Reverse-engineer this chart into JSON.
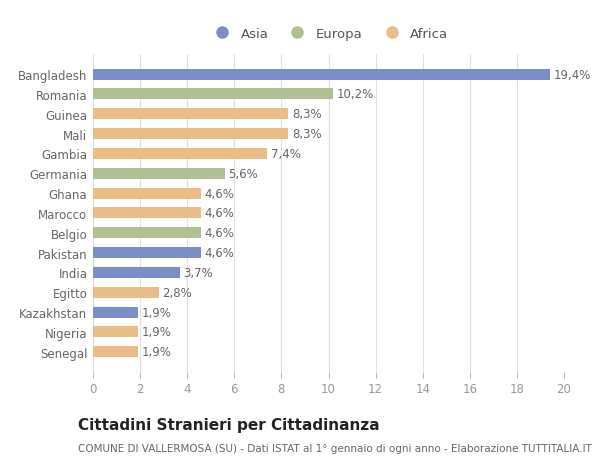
{
  "categories": [
    "Bangladesh",
    "Romania",
    "Guinea",
    "Mali",
    "Gambia",
    "Germania",
    "Ghana",
    "Marocco",
    "Belgio",
    "Pakistan",
    "India",
    "Egitto",
    "Kazakhstan",
    "Nigeria",
    "Senegal"
  ],
  "values": [
    19.4,
    10.2,
    8.3,
    8.3,
    7.4,
    5.6,
    4.6,
    4.6,
    4.6,
    4.6,
    3.7,
    2.8,
    1.9,
    1.9,
    1.9
  ],
  "labels": [
    "19,4%",
    "10,2%",
    "8,3%",
    "8,3%",
    "7,4%",
    "5,6%",
    "4,6%",
    "4,6%",
    "4,6%",
    "4,6%",
    "3,7%",
    "2,8%",
    "1,9%",
    "1,9%",
    "1,9%"
  ],
  "continents": [
    "Asia",
    "Europa",
    "Africa",
    "Africa",
    "Africa",
    "Europa",
    "Africa",
    "Africa",
    "Europa",
    "Asia",
    "Asia",
    "Africa",
    "Asia",
    "Africa",
    "Africa"
  ],
  "colors": {
    "Asia": "#7b8ec8",
    "Europa": "#b0c090",
    "Africa": "#eabc88"
  },
  "xlim": [
    0,
    20
  ],
  "xticks": [
    0,
    2,
    4,
    6,
    8,
    10,
    12,
    14,
    16,
    18,
    20
  ],
  "title": "Cittadini Stranieri per Cittadinanza",
  "subtitle": "COMUNE DI VALLERMOSA (SU) - Dati ISTAT al 1° gennaio di ogni anno - Elaborazione TUTTITALIA.IT",
  "bg_color": "#ffffff",
  "grid_color": "#e0e0e0",
  "bar_height": 0.55,
  "label_fontsize": 8.5,
  "ytick_fontsize": 8.5,
  "xtick_fontsize": 8.5,
  "title_fontsize": 11,
  "subtitle_fontsize": 7.5,
  "label_color": "#666666",
  "ytick_color": "#666666",
  "xtick_color": "#999999"
}
